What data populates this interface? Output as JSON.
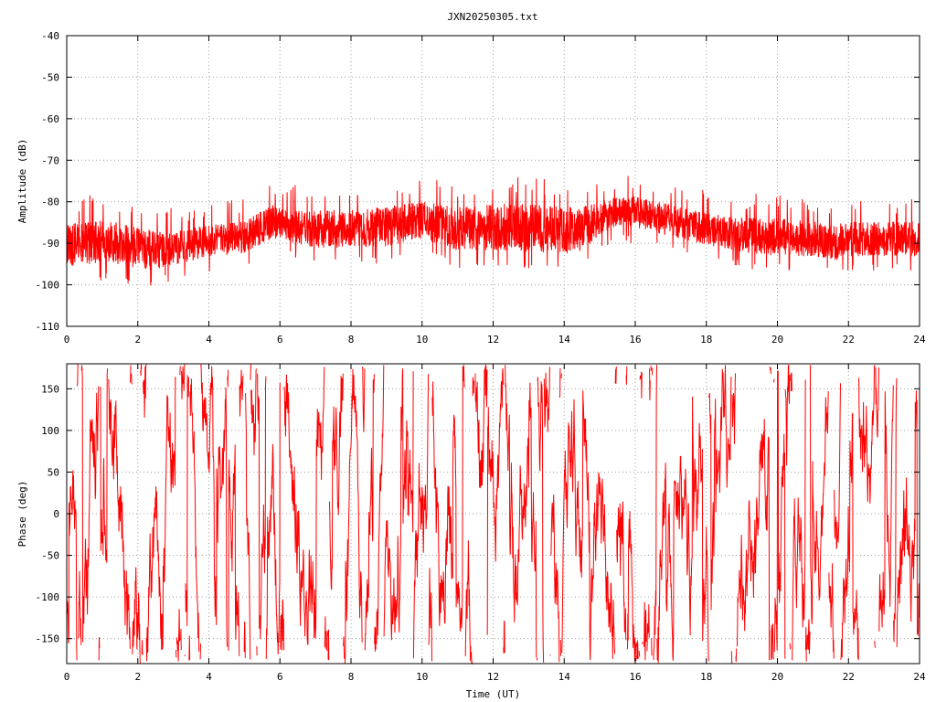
{
  "figure_title": "JXN20250305.txt",
  "colors": {
    "series": "#ff0000",
    "axes": "#000000",
    "grid": "#a0a0a0",
    "background": "#ffffff"
  },
  "chart_data": [
    {
      "type": "line",
      "ylabel": "Amplitude (dB)",
      "xlabel": "",
      "xlim": [
        0,
        24
      ],
      "ylim": [
        -110,
        -40
      ],
      "x_ticks": [
        0,
        2,
        4,
        6,
        8,
        10,
        12,
        14,
        16,
        18,
        20,
        22,
        24
      ],
      "y_ticks": [
        -110,
        -100,
        -90,
        -80,
        -70,
        -60,
        -50,
        -40
      ],
      "grid": true,
      "series": [
        {
          "color": "#ff0000",
          "envelope": {
            "x": [
              0,
              1,
              2,
              2.5,
              3,
              4,
              5,
              5.8,
              6,
              7,
              8,
              9,
              10,
              11,
              12,
              13,
              14,
              14.5,
              15,
              15.5,
              16,
              16.5,
              17,
              18,
              19,
              20,
              21,
              21.7,
              22,
              23,
              24
            ],
            "low": [
              -98,
              -97,
              -98,
              -98.5,
              -97,
              -95,
              -94,
              -91,
              -91,
              -93,
              -93,
              -93,
              -91,
              -94,
              -94,
              -95,
              -95,
              -94,
              -90,
              -88,
              -88,
              -89,
              -90,
              -92,
              -94,
              -95,
              -95,
              -96,
              -95,
              -95,
              -95
            ],
            "high": [
              -83,
              -82,
              -84,
              -85,
              -85,
              -84,
              -83,
              -79,
              -80,
              -80,
              -80,
              -79,
              -78,
              -79,
              -78,
              -78,
              -79,
              -79,
              -78,
              -77,
              -77,
              -78,
              -79,
              -81,
              -82,
              -82,
              -83,
              -83,
              -83,
              -83,
              -83
            ]
          }
        }
      ]
    },
    {
      "type": "line",
      "ylabel": "Phase (deg)",
      "xlabel": "Time (UT)",
      "xlim": [
        0,
        24
      ],
      "ylim": [
        -180,
        180
      ],
      "x_ticks": [
        0,
        2,
        4,
        6,
        8,
        10,
        12,
        14,
        16,
        18,
        20,
        22,
        24
      ],
      "y_ticks": [
        -150,
        -100,
        -50,
        0,
        50,
        100,
        150
      ],
      "grid": true,
      "series": [
        {
          "color": "#ff0000",
          "wrapped_range": [
            -180,
            180
          ]
        }
      ]
    }
  ]
}
